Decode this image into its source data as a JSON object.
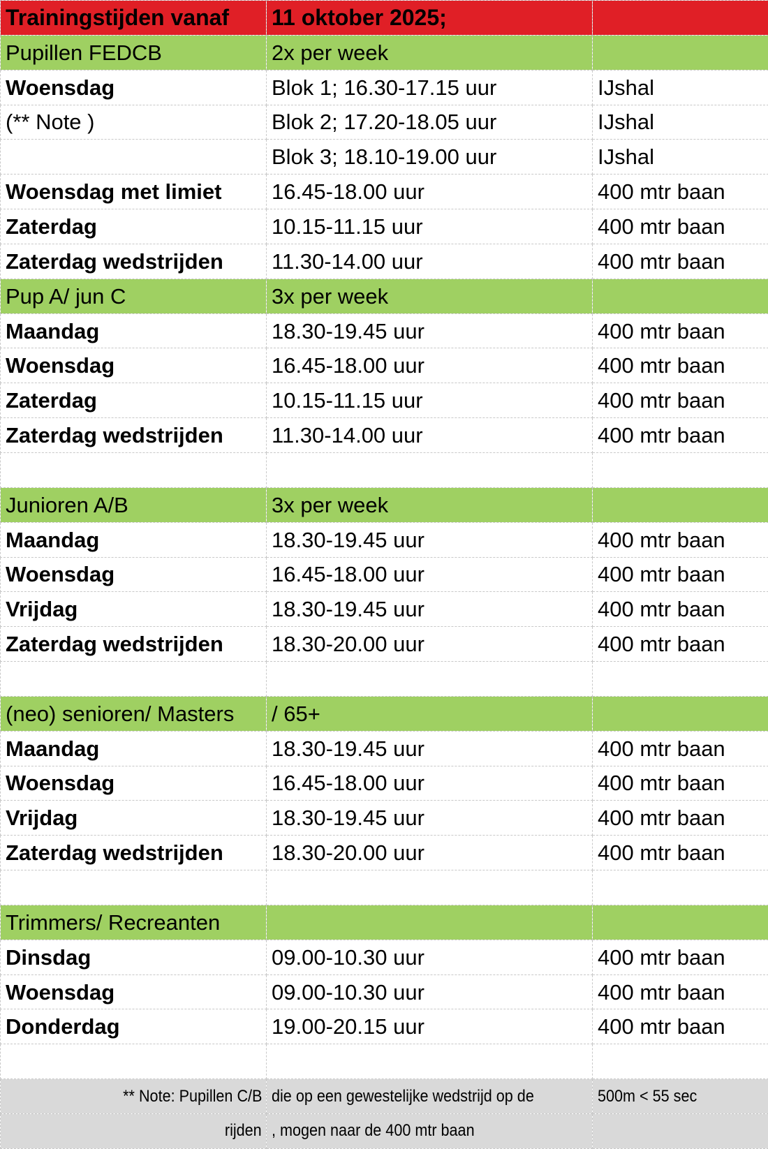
{
  "colors": {
    "title_bg": "#e01f26",
    "group_bg": "#9fd062",
    "note_bg": "#d9d9d9"
  },
  "rows": [
    {
      "type": "title",
      "cells": [
        "Trainingstijden vanaf",
        "11 oktober 2025;",
        ""
      ]
    },
    {
      "type": "group",
      "cells": [
        "Pupillen FEDCB",
        "2x per week",
        ""
      ]
    },
    {
      "type": "day",
      "cells": [
        "Woensdag",
        "Blok 1; 16.30-17.15 uur",
        "IJshal"
      ]
    },
    {
      "type": "plain",
      "cells": [
        "(** Note )",
        "Blok 2; 17.20-18.05 uur",
        "IJshal"
      ]
    },
    {
      "type": "plain",
      "cells": [
        "",
        "Blok 3; 18.10-19.00 uur",
        "IJshal"
      ]
    },
    {
      "type": "day",
      "cells": [
        "Woensdag met limiet",
        "16.45-18.00 uur",
        "400 mtr baan"
      ]
    },
    {
      "type": "day",
      "cells": [
        "Zaterdag",
        "10.15-11.15 uur",
        "400 mtr baan"
      ]
    },
    {
      "type": "day",
      "cells": [
        "Zaterdag wedstrijden",
        "11.30-14.00 uur",
        "400 mtr baan"
      ]
    },
    {
      "type": "group",
      "cells": [
        "Pup A/ jun C",
        "3x per week",
        ""
      ]
    },
    {
      "type": "day",
      "cells": [
        "Maandag",
        "18.30-19.45 uur",
        "400 mtr baan"
      ]
    },
    {
      "type": "day",
      "cells": [
        "Woensdag",
        "16.45-18.00 uur",
        "400 mtr baan"
      ]
    },
    {
      "type": "day",
      "cells": [
        "Zaterdag",
        "10.15-11.15 uur",
        "400 mtr baan"
      ]
    },
    {
      "type": "day",
      "cells": [
        "Zaterdag wedstrijden",
        "11.30-14.00 uur",
        "400 mtr baan"
      ]
    },
    {
      "type": "empty",
      "cells": [
        "",
        "",
        ""
      ]
    },
    {
      "type": "group",
      "cells": [
        "Junioren A/B",
        "3x per week",
        ""
      ]
    },
    {
      "type": "day",
      "cells": [
        "Maandag",
        "18.30-19.45 uur",
        "400 mtr baan"
      ]
    },
    {
      "type": "day",
      "cells": [
        "Woensdag",
        "16.45-18.00 uur",
        "400 mtr baan"
      ]
    },
    {
      "type": "day",
      "cells": [
        "Vrijdag",
        "18.30-19.45 uur",
        "400 mtr baan"
      ]
    },
    {
      "type": "day",
      "cells": [
        "Zaterdag wedstrijden",
        "18.30-20.00 uur",
        "400 mtr baan"
      ]
    },
    {
      "type": "empty",
      "cells": [
        "",
        "",
        ""
      ]
    },
    {
      "type": "group",
      "cells": [
        "(neo) senioren/ Masters",
        "/ 65+",
        ""
      ]
    },
    {
      "type": "day",
      "cells": [
        "Maandag",
        "18.30-19.45 uur",
        "400 mtr baan"
      ]
    },
    {
      "type": "day",
      "cells": [
        "Woensdag",
        "16.45-18.00 uur",
        "400 mtr baan"
      ]
    },
    {
      "type": "day",
      "cells": [
        "Vrijdag",
        "18.30-19.45 uur",
        "400 mtr baan"
      ]
    },
    {
      "type": "day",
      "cells": [
        "Zaterdag wedstrijden",
        "18.30-20.00 uur",
        "400 mtr baan"
      ]
    },
    {
      "type": "empty",
      "cells": [
        "",
        "",
        ""
      ]
    },
    {
      "type": "group",
      "cells": [
        "Trimmers/ Recreanten",
        "",
        ""
      ]
    },
    {
      "type": "day",
      "cells": [
        "Dinsdag",
        "09.00-10.30 uur",
        "400 mtr baan"
      ]
    },
    {
      "type": "day",
      "cells": [
        "Woensdag",
        "09.00-10.30 uur",
        "400 mtr baan"
      ]
    },
    {
      "type": "day",
      "cells": [
        "Donderdag",
        "19.00-20.15 uur",
        "400 mtr baan"
      ]
    },
    {
      "type": "empty",
      "cells": [
        "",
        "",
        ""
      ]
    },
    {
      "type": "note",
      "cells": [
        "** Note: Pupillen C/B",
        "die op een gewestelijke wedstrijd op de",
        "500m < 55 sec"
      ]
    },
    {
      "type": "note",
      "cells": [
        "rijden",
        ", mogen naar de 400 mtr baan",
        ""
      ]
    }
  ]
}
